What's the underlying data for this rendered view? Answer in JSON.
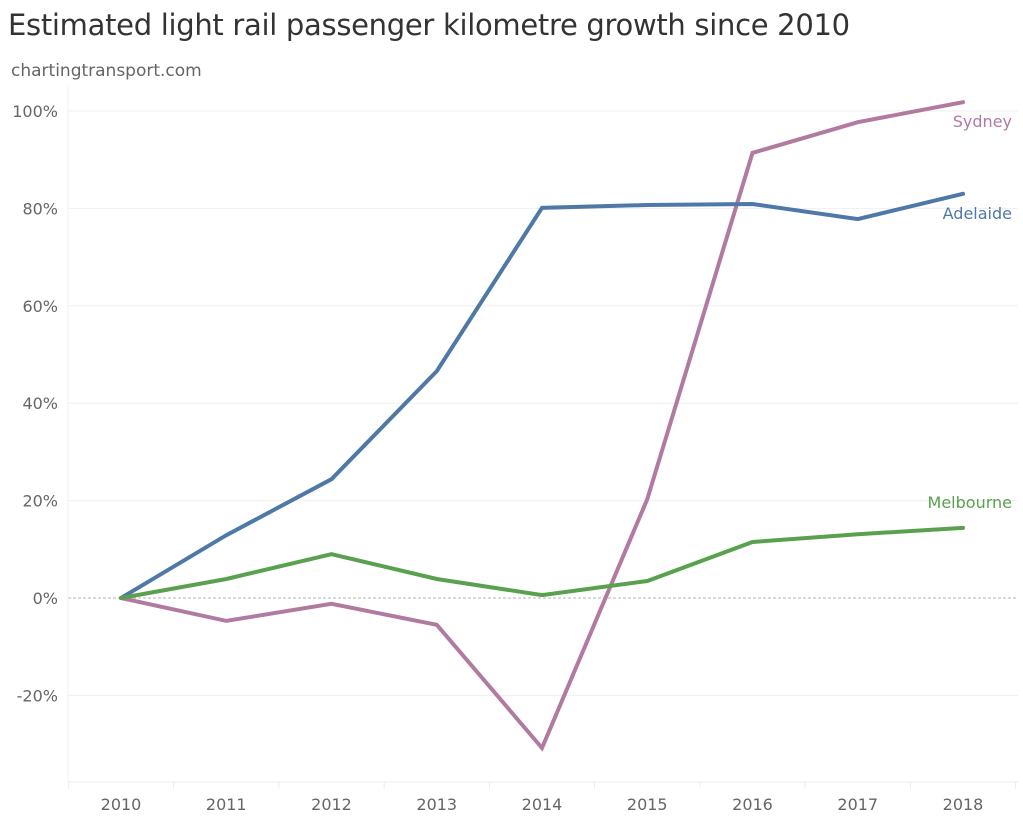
{
  "chart_data": {
    "type": "line",
    "title": "Estimated light rail passenger kilometre growth since 2010",
    "subtitle": "chartingtransport.com",
    "xlabel": "",
    "ylabel": "",
    "x": [
      "2010",
      "2011",
      "2012",
      "2013",
      "2014",
      "2015",
      "2016",
      "2017",
      "2018"
    ],
    "ylim": [
      -37.5,
      105
    ],
    "yticks": [
      100,
      80,
      60,
      40,
      20,
      0,
      -20
    ],
    "ytick_labels": [
      "100%",
      "80%",
      "60%",
      "40%",
      "20%",
      "0%",
      "-20%"
    ],
    "grid": true,
    "zero_line": "dashed",
    "legend": "direct-labels-right",
    "series": [
      {
        "name": "Sydney",
        "color": "#b07aa1",
        "values": [
          0,
          -4.7,
          -1.2,
          -5.5,
          -30.8,
          20.3,
          91.4,
          97.7,
          101.8
        ]
      },
      {
        "name": "Adelaide",
        "color": "#4e79a7",
        "values": [
          0,
          12.9,
          24.4,
          46.6,
          80.1,
          80.7,
          80.9,
          77.8,
          83.0
        ]
      },
      {
        "name": "Melbourne",
        "color": "#59a14f",
        "values": [
          0,
          3.9,
          9.0,
          3.9,
          0.6,
          3.5,
          11.5,
          13.1,
          14.4
        ]
      }
    ]
  }
}
